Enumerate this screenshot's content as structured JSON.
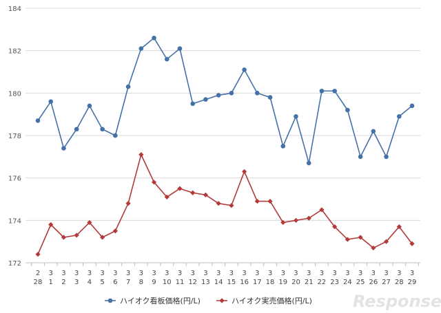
{
  "chart_data": {
    "type": "line",
    "title": "",
    "xlabel": "",
    "ylabel": "",
    "ylim": [
      172,
      184
    ],
    "yticks": [
      172,
      174,
      176,
      178,
      180,
      182,
      184
    ],
    "grid": true,
    "legend_position": "bottom",
    "categories": [
      {
        "month": "2",
        "day": "28"
      },
      {
        "month": "3",
        "day": "1"
      },
      {
        "month": "3",
        "day": "2"
      },
      {
        "month": "3",
        "day": "3"
      },
      {
        "month": "3",
        "day": "4"
      },
      {
        "month": "3",
        "day": "5"
      },
      {
        "month": "3",
        "day": "6"
      },
      {
        "month": "3",
        "day": "7"
      },
      {
        "month": "3",
        "day": "8"
      },
      {
        "month": "3",
        "day": "9"
      },
      {
        "month": "3",
        "day": "10"
      },
      {
        "month": "3",
        "day": "11"
      },
      {
        "month": "3",
        "day": "12"
      },
      {
        "month": "3",
        "day": "13"
      },
      {
        "month": "3",
        "day": "14"
      },
      {
        "month": "3",
        "day": "15"
      },
      {
        "month": "3",
        "day": "16"
      },
      {
        "month": "3",
        "day": "17"
      },
      {
        "month": "3",
        "day": "18"
      },
      {
        "month": "3",
        "day": "19"
      },
      {
        "month": "3",
        "day": "20"
      },
      {
        "month": "3",
        "day": "21"
      },
      {
        "month": "3",
        "day": "22"
      },
      {
        "month": "3",
        "day": "23"
      },
      {
        "month": "3",
        "day": "24"
      },
      {
        "month": "3",
        "day": "25"
      },
      {
        "month": "3",
        "day": "26"
      },
      {
        "month": "3",
        "day": "27"
      },
      {
        "month": "3",
        "day": "28"
      },
      {
        "month": "3",
        "day": "29"
      }
    ],
    "series": [
      {
        "name": "ハイオク看板価格(円/L)",
        "color": "#4472a8",
        "marker": "circle",
        "values": [
          178.7,
          179.6,
          177.4,
          178.3,
          179.4,
          178.3,
          178.0,
          180.3,
          182.1,
          182.6,
          181.6,
          182.1,
          179.5,
          179.7,
          179.9,
          180.0,
          181.1,
          180.0,
          179.8,
          177.5,
          178.9,
          176.7,
          180.1,
          180.1,
          179.2,
          177.0,
          178.2,
          177.0,
          178.9,
          179.4
        ]
      },
      {
        "name": "ハイオク実売価格(円/L)",
        "color": "#b23a3a",
        "marker": "diamond",
        "values": [
          172.4,
          173.8,
          173.2,
          173.3,
          173.9,
          173.2,
          173.5,
          174.8,
          177.1,
          175.8,
          175.1,
          175.5,
          175.3,
          175.2,
          174.8,
          174.7,
          176.3,
          174.9,
          174.9,
          173.9,
          174.0,
          174.1,
          174.5,
          173.7,
          173.1,
          173.2,
          172.7,
          173.0,
          173.7,
          172.9
        ]
      }
    ]
  },
  "watermark": {
    "text": "Response."
  }
}
